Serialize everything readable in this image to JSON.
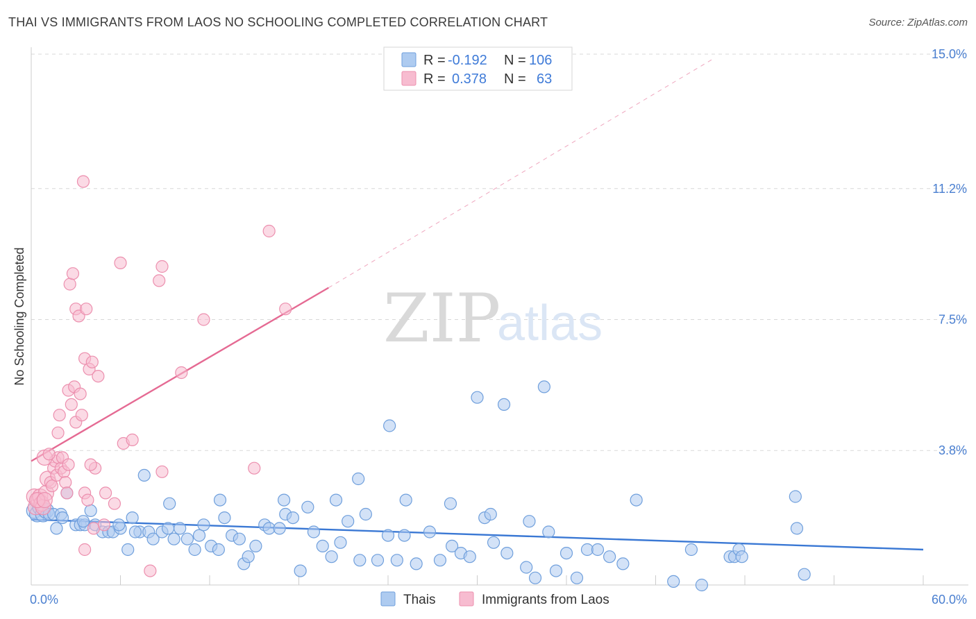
{
  "title": "THAI VS IMMIGRANTS FROM LAOS NO SCHOOLING COMPLETED CORRELATION CHART",
  "source": "Source: ZipAtlas.com",
  "watermark": {
    "zip": "ZIP",
    "atlas": "atlas"
  },
  "colors": {
    "thai_fill": "#aecbf0",
    "thai_stroke": "#6f9fdc",
    "thai_line": "#3a78d4",
    "laos_fill": "#f7bcd0",
    "laos_stroke": "#ec8fae",
    "laos_line": "#e56a93",
    "grid": "#d8d8d8",
    "tick_label": "#4a7fd0"
  },
  "legend": {
    "rows": [
      {
        "series": "thai",
        "r_label": "R =",
        "r_value": "-0.192",
        "n_label": "N =",
        "n_value": "106"
      },
      {
        "series": "laos",
        "r_label": "R =",
        "r_value": "0.378",
        "n_label": "N =",
        "n_value": "63"
      }
    ]
  },
  "chart_data": {
    "type": "scatter",
    "title": "THAI VS IMMIGRANTS FROM LAOS NO SCHOOLING COMPLETED CORRELATION CHART",
    "xlabel": "",
    "ylabel": "No Schooling Completed",
    "xlim": [
      0,
      60
    ],
    "ylim": [
      0,
      15
    ],
    "x_tick_labels": [
      {
        "value": 0,
        "label": "0.0%"
      },
      {
        "value": 60,
        "label": "60.0%"
      }
    ],
    "y_tick_labels": [
      {
        "value": 15.0,
        "label": "15.0%"
      },
      {
        "value": 11.2,
        "label": "11.2%"
      },
      {
        "value": 7.5,
        "label": "7.5%"
      },
      {
        "value": 3.8,
        "label": "3.8%"
      }
    ],
    "x_minor_ticks": [
      6,
      12,
      18,
      24,
      30,
      36,
      42,
      48,
      54,
      60
    ],
    "series": [
      {
        "name": "Thais",
        "key": "thai",
        "trend": {
          "x1": 0,
          "y1": 1.85,
          "x2": 60,
          "y2": 1.0,
          "dashed_to": null
        },
        "points": [
          [
            0.2,
            2.1
          ],
          [
            0.4,
            2.0
          ],
          [
            0.6,
            2.2
          ],
          [
            0.8,
            2.0
          ],
          [
            1.0,
            2.1
          ],
          [
            1.2,
            2.0
          ],
          [
            1.5,
            2.0
          ],
          [
            1.7,
            1.6
          ],
          [
            2.0,
            2.0
          ],
          [
            2.4,
            2.6
          ],
          [
            3.0,
            1.7
          ],
          [
            3.3,
            1.7
          ],
          [
            3.6,
            1.7
          ],
          [
            4.0,
            2.1
          ],
          [
            4.3,
            1.7
          ],
          [
            4.8,
            1.5
          ],
          [
            5.2,
            1.5
          ],
          [
            5.5,
            1.5
          ],
          [
            6.0,
            1.6
          ],
          [
            6.5,
            1.0
          ],
          [
            6.8,
            1.9
          ],
          [
            7.3,
            1.5
          ],
          [
            7.9,
            1.5
          ],
          [
            8.2,
            1.3
          ],
          [
            8.8,
            1.5
          ],
          [
            9.2,
            1.6
          ],
          [
            9.6,
            1.3
          ],
          [
            10.0,
            1.6
          ],
          [
            10.5,
            1.3
          ],
          [
            11.0,
            1.0
          ],
          [
            11.3,
            1.4
          ],
          [
            11.6,
            1.7
          ],
          [
            12.1,
            1.1
          ],
          [
            12.6,
            1.0
          ],
          [
            13.0,
            1.9
          ],
          [
            13.5,
            1.4
          ],
          [
            14.0,
            1.3
          ],
          [
            14.3,
            0.6
          ],
          [
            14.6,
            0.8
          ],
          [
            15.1,
            1.1
          ],
          [
            15.7,
            1.7
          ],
          [
            16.0,
            1.6
          ],
          [
            16.7,
            1.6
          ],
          [
            17.1,
            2.0
          ],
          [
            17.6,
            1.9
          ],
          [
            18.1,
            0.4
          ],
          [
            18.6,
            2.2
          ],
          [
            19.0,
            1.5
          ],
          [
            19.6,
            1.1
          ],
          [
            20.2,
            0.8
          ],
          [
            20.8,
            1.2
          ],
          [
            21.3,
            1.8
          ],
          [
            22.1,
            0.7
          ],
          [
            22.5,
            2.0
          ],
          [
            23.3,
            0.7
          ],
          [
            24.0,
            1.4
          ],
          [
            24.6,
            0.7
          ],
          [
            25.1,
            1.4
          ],
          [
            25.9,
            0.6
          ],
          [
            26.8,
            1.5
          ],
          [
            27.5,
            0.7
          ],
          [
            28.3,
            1.1
          ],
          [
            28.9,
            0.9
          ],
          [
            29.5,
            0.8
          ],
          [
            30.5,
            1.9
          ],
          [
            31.1,
            1.2
          ],
          [
            32.0,
            0.9
          ],
          [
            33.3,
            0.5
          ],
          [
            33.9,
            0.2
          ],
          [
            35.3,
            0.4
          ],
          [
            36.0,
            0.9
          ],
          [
            36.7,
            0.2
          ],
          [
            37.4,
            1.0
          ],
          [
            38.1,
            1.0
          ],
          [
            38.9,
            0.8
          ],
          [
            39.8,
            0.6
          ],
          [
            43.2,
            0.1
          ],
          [
            44.4,
            1.0
          ],
          [
            47.0,
            0.8
          ],
          [
            47.3,
            0.8
          ],
          [
            47.6,
            1.0
          ],
          [
            47.8,
            0.8
          ],
          [
            51.4,
            2.5
          ],
          [
            51.5,
            1.6
          ],
          [
            52.0,
            0.3
          ],
          [
            22.0,
            3.0
          ],
          [
            30.0,
            5.3
          ],
          [
            31.8,
            5.1
          ],
          [
            34.5,
            5.6
          ],
          [
            24.1,
            4.5
          ],
          [
            7.6,
            3.1
          ],
          [
            9.3,
            2.3
          ],
          [
            12.7,
            2.4
          ],
          [
            17.0,
            2.4
          ],
          [
            20.5,
            2.4
          ],
          [
            25.2,
            2.4
          ],
          [
            28.2,
            2.3
          ],
          [
            30.9,
            2.0
          ],
          [
            33.5,
            1.8
          ],
          [
            34.8,
            1.5
          ],
          [
            40.7,
            2.4
          ],
          [
            45.1,
            0.0
          ],
          [
            2.1,
            1.9
          ],
          [
            3.5,
            1.8
          ],
          [
            5.9,
            1.7
          ],
          [
            7.0,
            1.5
          ]
        ]
      },
      {
        "name": "Immigrants from Laos",
        "key": "laos",
        "trend": {
          "x1": 0,
          "y1": 3.5,
          "x2": 20,
          "y2": 8.4,
          "dashed_to": {
            "x": 46,
            "y": 14.9
          }
        },
        "points": [
          [
            0.2,
            2.5
          ],
          [
            0.3,
            2.2
          ],
          [
            0.5,
            2.4
          ],
          [
            0.6,
            2.5
          ],
          [
            0.7,
            2.3
          ],
          [
            0.8,
            2.2
          ],
          [
            1.0,
            2.6
          ],
          [
            1.1,
            3.0
          ],
          [
            1.3,
            2.9
          ],
          [
            1.4,
            2.8
          ],
          [
            1.5,
            3.3
          ],
          [
            1.6,
            3.5
          ],
          [
            1.7,
            3.1
          ],
          [
            1.8,
            3.6
          ],
          [
            2.0,
            3.3
          ],
          [
            2.1,
            3.6
          ],
          [
            2.2,
            3.2
          ],
          [
            2.3,
            2.9
          ],
          [
            2.4,
            2.6
          ],
          [
            2.5,
            3.4
          ],
          [
            0.9,
            3.6
          ],
          [
            1.2,
            3.7
          ],
          [
            1.8,
            4.3
          ],
          [
            1.9,
            4.8
          ],
          [
            2.5,
            5.5
          ],
          [
            2.7,
            5.1
          ],
          [
            2.9,
            5.6
          ],
          [
            3.0,
            4.6
          ],
          [
            3.3,
            5.4
          ],
          [
            3.4,
            4.8
          ],
          [
            3.6,
            6.4
          ],
          [
            3.9,
            6.1
          ],
          [
            4.1,
            6.3
          ],
          [
            4.5,
            5.9
          ],
          [
            2.6,
            8.5
          ],
          [
            2.8,
            8.8
          ],
          [
            3.0,
            7.8
          ],
          [
            3.2,
            7.6
          ],
          [
            3.7,
            7.8
          ],
          [
            3.5,
            11.4
          ],
          [
            6.0,
            9.1
          ],
          [
            8.6,
            8.6
          ],
          [
            8.8,
            9.0
          ],
          [
            11.6,
            7.5
          ],
          [
            10.1,
            6.0
          ],
          [
            16.0,
            10.0
          ],
          [
            17.1,
            7.8
          ],
          [
            6.2,
            4.0
          ],
          [
            6.8,
            4.1
          ],
          [
            8.8,
            3.2
          ],
          [
            15.0,
            3.3
          ],
          [
            4.3,
            3.3
          ],
          [
            4.0,
            3.4
          ],
          [
            3.6,
            2.6
          ],
          [
            3.8,
            2.4
          ],
          [
            5.0,
            2.6
          ],
          [
            5.6,
            2.3
          ],
          [
            4.2,
            1.6
          ],
          [
            4.9,
            1.7
          ],
          [
            3.6,
            1.0
          ],
          [
            8.0,
            0.4
          ],
          [
            0.4,
            2.4
          ],
          [
            0.9,
            2.4
          ]
        ]
      }
    ]
  },
  "bottom_legend": [
    {
      "series": "thai",
      "label": "Thais"
    },
    {
      "series": "laos",
      "label": "Immigrants from Laos"
    }
  ]
}
